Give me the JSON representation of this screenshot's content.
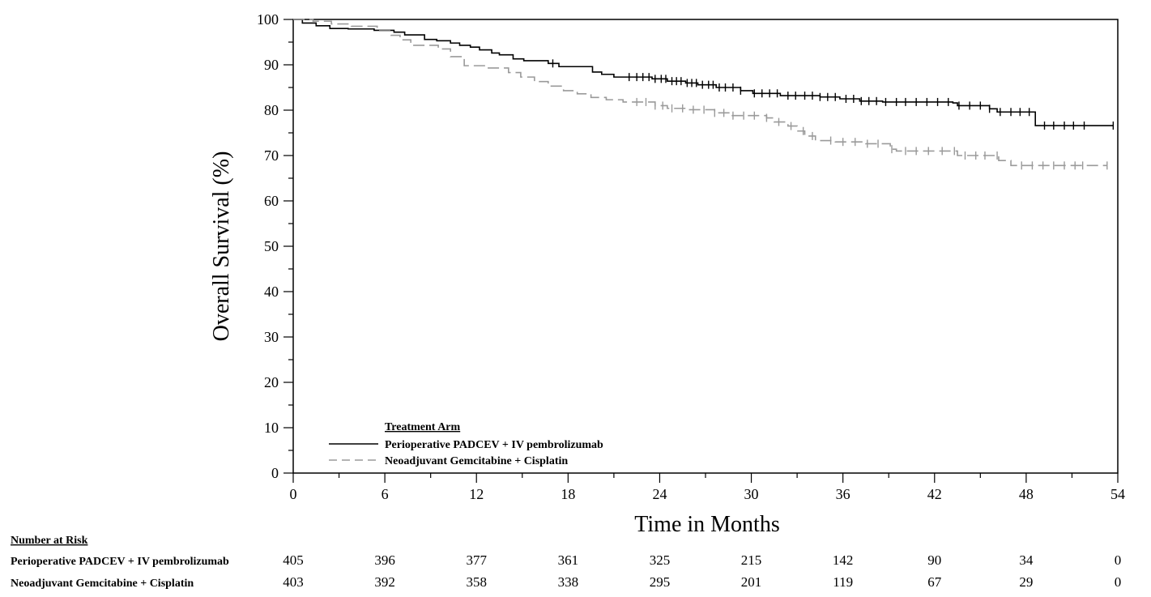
{
  "chart_data": {
    "type": "line",
    "xlabel": "Time in Months",
    "ylabel": "Overall Survival (%)",
    "xlim": [
      0,
      54
    ],
    "ylim": [
      0,
      100
    ],
    "x_ticks": [
      0,
      6,
      12,
      18,
      24,
      30,
      36,
      42,
      48,
      54
    ],
    "y_ticks": [
      0,
      10,
      20,
      30,
      40,
      50,
      60,
      70,
      80,
      90,
      100
    ],
    "grid": false,
    "legend": {
      "title": "Treatment Arm",
      "placement": "bottom-left"
    },
    "series": [
      {
        "name": "Perioperative PADCEV + IV pembrolizumab",
        "color": "#000000",
        "style": "solid",
        "points": [
          [
            0,
            100
          ],
          [
            0.6,
            99.2
          ],
          [
            1.5,
            98.6
          ],
          [
            2.4,
            98
          ],
          [
            3.6,
            97.9
          ],
          [
            5.3,
            97.6
          ],
          [
            6.6,
            97.2
          ],
          [
            7.3,
            96.6
          ],
          [
            8.6,
            95.6
          ],
          [
            9.4,
            95.3
          ],
          [
            10.3,
            94.8
          ],
          [
            10.9,
            94.3
          ],
          [
            11.6,
            93.9
          ],
          [
            12.2,
            93.3
          ],
          [
            13,
            92.6
          ],
          [
            13.5,
            92.2
          ],
          [
            14.4,
            91.3
          ],
          [
            15.1,
            90.9
          ],
          [
            16.7,
            90.3
          ],
          [
            17.4,
            89.6
          ],
          [
            19.6,
            88.4
          ],
          [
            20.2,
            87.9
          ],
          [
            21,
            87.3
          ],
          [
            23.5,
            86.9
          ],
          [
            24.5,
            86.4
          ],
          [
            25.7,
            86
          ],
          [
            26.5,
            85.6
          ],
          [
            27.7,
            85
          ],
          [
            29.3,
            84.3
          ],
          [
            30.1,
            83.7
          ],
          [
            31.9,
            83.2
          ],
          [
            34.5,
            82.9
          ],
          [
            35.8,
            82.5
          ],
          [
            37.1,
            82
          ],
          [
            38.6,
            81.8
          ],
          [
            43.2,
            81.6
          ],
          [
            43.5,
            81
          ],
          [
            45.6,
            80.3
          ],
          [
            46.1,
            79.6
          ],
          [
            48.6,
            76.6
          ],
          [
            53.7,
            76.6
          ]
        ],
        "censor_x": [
          17,
          22,
          22.5,
          22.9,
          23.3,
          23.7,
          24.1,
          24.4,
          24.8,
          25.1,
          25.4,
          25.8,
          26.1,
          26.4,
          26.8,
          27.2,
          27.5,
          27.9,
          28.3,
          28.8,
          29.3,
          30.2,
          30.7,
          31.2,
          31.7,
          32.4,
          32.9,
          33.5,
          34,
          34.5,
          35,
          35.5,
          36.2,
          36.7,
          37.2,
          37.7,
          38.2,
          38.8,
          39.5,
          40.1,
          40.8,
          41.5,
          42.2,
          42.9,
          43.6,
          44.3,
          45,
          45.6,
          46.3,
          47,
          47.6,
          48.2,
          49.2,
          49.8,
          50.5,
          51.1,
          51.8,
          53.7
        ]
      },
      {
        "name": "Neoadjuvant Gemcitabine + Cisplatin",
        "color": "#9a9a9a",
        "style": "dashed",
        "points": [
          [
            0,
            100
          ],
          [
            1.3,
            99.6
          ],
          [
            2.5,
            99
          ],
          [
            3.8,
            98.5
          ],
          [
            5.5,
            97.5
          ],
          [
            6.4,
            96.5
          ],
          [
            7,
            95.5
          ],
          [
            7.7,
            94.3
          ],
          [
            9.5,
            93.5
          ],
          [
            10.3,
            91.8
          ],
          [
            11.2,
            89.8
          ],
          [
            12.6,
            89.3
          ],
          [
            14.1,
            88.3
          ],
          [
            14.9,
            87.3
          ],
          [
            15.8,
            86.3
          ],
          [
            16.7,
            85.3
          ],
          [
            17.7,
            84.3
          ],
          [
            18.6,
            83.6
          ],
          [
            19.5,
            82.8
          ],
          [
            20.5,
            82.3
          ],
          [
            21.6,
            81.8
          ],
          [
            23.7,
            81
          ],
          [
            24.5,
            80.4
          ],
          [
            25.9,
            80.1
          ],
          [
            27.6,
            79.4
          ],
          [
            28.6,
            78.8
          ],
          [
            31,
            78.3
          ],
          [
            31.5,
            77.4
          ],
          [
            32.4,
            76.5
          ],
          [
            33,
            75.4
          ],
          [
            33.5,
            74.3
          ],
          [
            34.2,
            73.3
          ],
          [
            35.5,
            73
          ],
          [
            37.5,
            72.6
          ],
          [
            39.1,
            71.4
          ],
          [
            39.5,
            71
          ],
          [
            43.5,
            70
          ],
          [
            46.2,
            68.9
          ],
          [
            47,
            67.8
          ],
          [
            53.3,
            67.8
          ]
        ],
        "censor_x": [
          22.5,
          23.1,
          23.7,
          24.2,
          24.8,
          25.5,
          26.2,
          26.9,
          27.6,
          28.2,
          28.8,
          29.5,
          30.2,
          31,
          31.8,
          32.6,
          33.4,
          34,
          35.2,
          36,
          36.8,
          37.6,
          38.3,
          39.2,
          40.1,
          40.8,
          41.6,
          42.5,
          43.3,
          44,
          44.7,
          45.3,
          46.1,
          47.7,
          48.4,
          49.1,
          49.8,
          50.5,
          51.2,
          51.7,
          53.3
        ]
      }
    ]
  },
  "risk_table": {
    "title": "Number at Risk",
    "rows": [
      {
        "label": "Perioperative PADCEV + IV pembrolizumab",
        "values": [
          "405",
          "396",
          "377",
          "361",
          "325",
          "215",
          "142",
          "90",
          "34",
          "0"
        ]
      },
      {
        "label": "Neoadjuvant Gemcitabine + Cisplatin",
        "values": [
          "403",
          "392",
          "358",
          "338",
          "295",
          "201",
          "119",
          "67",
          "29",
          "0"
        ]
      }
    ]
  }
}
